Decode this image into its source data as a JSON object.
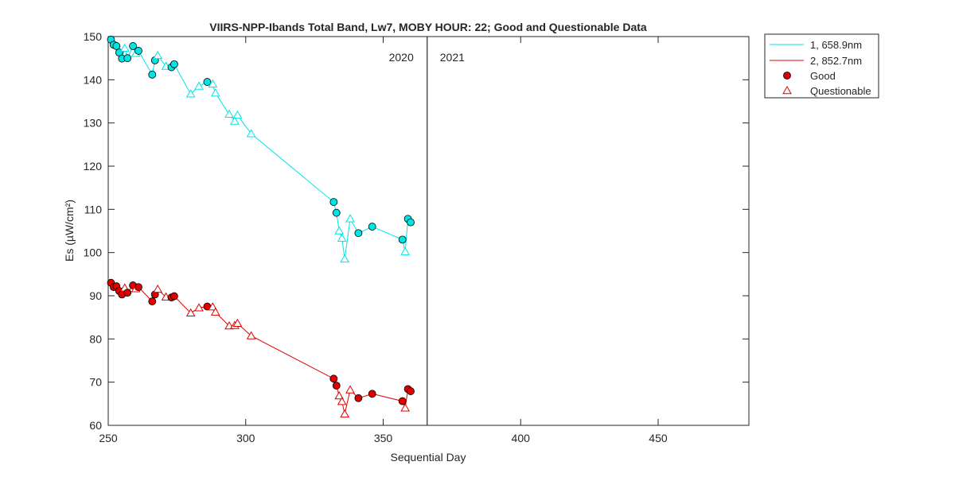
{
  "chart_data": {
    "type": "line",
    "title": "VIIRS-NPP-Ibands Total Band,  Lw7, MOBY HOUR: 22;  Good and Questionable Data",
    "xlabel": "Sequential Day",
    "ylabel": "Es (µW/cm²)",
    "xlim": [
      250,
      483
    ],
    "ylim": [
      60,
      150
    ],
    "xticks": [
      250,
      300,
      350,
      400,
      450
    ],
    "yticks": [
      60,
      70,
      80,
      90,
      100,
      110,
      120,
      130,
      140,
      150
    ],
    "year_divider_x": 366,
    "year_labels": [
      "2020",
      "2021"
    ],
    "legend_position": "outside-top-right",
    "grid": false,
    "series": [
      {
        "name": "1, 658.9nm",
        "color": "#00e5e5",
        "points": [
          {
            "x": 251,
            "y": 149.3,
            "q": "good"
          },
          {
            "x": 252,
            "y": 148.1,
            "q": "good"
          },
          {
            "x": 253,
            "y": 147.8,
            "q": "good"
          },
          {
            "x": 254,
            "y": 146.3,
            "q": "good"
          },
          {
            "x": 255,
            "y": 144.9,
            "q": "good"
          },
          {
            "x": 256,
            "y": 147.3,
            "q": "questionable"
          },
          {
            "x": 257,
            "y": 145.0,
            "q": "good"
          },
          {
            "x": 259,
            "y": 147.8,
            "q": "good"
          },
          {
            "x": 260,
            "y": 146.1,
            "q": "questionable"
          },
          {
            "x": 261,
            "y": 146.7,
            "q": "good"
          },
          {
            "x": 266,
            "y": 141.2,
            "q": "good"
          },
          {
            "x": 267,
            "y": 144.5,
            "q": "good"
          },
          {
            "x": 268,
            "y": 145.6,
            "q": "questionable"
          },
          {
            "x": 271,
            "y": 143.1,
            "q": "questionable"
          },
          {
            "x": 273,
            "y": 142.9,
            "q": "good"
          },
          {
            "x": 274,
            "y": 143.6,
            "q": "good"
          },
          {
            "x": 280,
            "y": 136.7,
            "q": "questionable"
          },
          {
            "x": 283,
            "y": 138.5,
            "q": "questionable"
          },
          {
            "x": 286,
            "y": 139.5,
            "q": "good"
          },
          {
            "x": 288,
            "y": 139.0,
            "q": "questionable"
          },
          {
            "x": 289,
            "y": 136.9,
            "q": "questionable"
          },
          {
            "x": 294,
            "y": 132.0,
            "q": "questionable"
          },
          {
            "x": 296,
            "y": 130.4,
            "q": "questionable"
          },
          {
            "x": 297,
            "y": 131.8,
            "q": "questionable"
          },
          {
            "x": 302,
            "y": 127.5,
            "q": "questionable"
          },
          {
            "x": 332,
            "y": 111.7,
            "q": "good"
          },
          {
            "x": 333,
            "y": 109.2,
            "q": "good"
          },
          {
            "x": 334,
            "y": 105.0,
            "q": "questionable"
          },
          {
            "x": 335,
            "y": 103.3,
            "q": "questionable"
          },
          {
            "x": 336,
            "y": 98.5,
            "q": "questionable"
          },
          {
            "x": 338,
            "y": 107.8,
            "q": "questionable"
          },
          {
            "x": 341,
            "y": 104.5,
            "q": "good"
          },
          {
            "x": 346,
            "y": 106.0,
            "q": "good"
          },
          {
            "x": 357,
            "y": 103.0,
            "q": "good"
          },
          {
            "x": 358,
            "y": 100.2,
            "q": "questionable"
          },
          {
            "x": 359,
            "y": 107.8,
            "q": "good"
          },
          {
            "x": 360,
            "y": 107.0,
            "q": "good"
          }
        ]
      },
      {
        "name": "2, 852.7nm",
        "color": "#e00000",
        "points": [
          {
            "x": 251,
            "y": 93.0,
            "q": "good"
          },
          {
            "x": 252,
            "y": 92.0,
            "q": "good"
          },
          {
            "x": 253,
            "y": 92.2,
            "q": "good"
          },
          {
            "x": 254,
            "y": 91.1,
            "q": "good"
          },
          {
            "x": 255,
            "y": 90.3,
            "q": "good"
          },
          {
            "x": 256,
            "y": 91.8,
            "q": "questionable"
          },
          {
            "x": 257,
            "y": 90.7,
            "q": "good"
          },
          {
            "x": 259,
            "y": 92.4,
            "q": "good"
          },
          {
            "x": 260,
            "y": 91.6,
            "q": "questionable"
          },
          {
            "x": 261,
            "y": 92.0,
            "q": "good"
          },
          {
            "x": 266,
            "y": 88.7,
            "q": "good"
          },
          {
            "x": 267,
            "y": 90.3,
            "q": "good"
          },
          {
            "x": 268,
            "y": 91.5,
            "q": "questionable"
          },
          {
            "x": 271,
            "y": 89.7,
            "q": "questionable"
          },
          {
            "x": 273,
            "y": 89.6,
            "q": "good"
          },
          {
            "x": 274,
            "y": 89.9,
            "q": "good"
          },
          {
            "x": 280,
            "y": 86.0,
            "q": "questionable"
          },
          {
            "x": 283,
            "y": 87.2,
            "q": "questionable"
          },
          {
            "x": 286,
            "y": 87.5,
            "q": "good"
          },
          {
            "x": 288,
            "y": 87.4,
            "q": "questionable"
          },
          {
            "x": 289,
            "y": 86.2,
            "q": "questionable"
          },
          {
            "x": 294,
            "y": 83.0,
            "q": "questionable"
          },
          {
            "x": 296,
            "y": 83.1,
            "q": "questionable"
          },
          {
            "x": 297,
            "y": 83.6,
            "q": "questionable"
          },
          {
            "x": 302,
            "y": 80.7,
            "q": "questionable"
          },
          {
            "x": 332,
            "y": 70.8,
            "q": "good"
          },
          {
            "x": 333,
            "y": 69.2,
            "q": "good"
          },
          {
            "x": 334,
            "y": 66.8,
            "q": "questionable"
          },
          {
            "x": 335,
            "y": 65.5,
            "q": "questionable"
          },
          {
            "x": 336,
            "y": 62.6,
            "q": "questionable"
          },
          {
            "x": 338,
            "y": 68.2,
            "q": "questionable"
          },
          {
            "x": 341,
            "y": 66.3,
            "q": "good"
          },
          {
            "x": 346,
            "y": 67.3,
            "q": "good"
          },
          {
            "x": 357,
            "y": 65.6,
            "q": "good"
          },
          {
            "x": 358,
            "y": 64.0,
            "q": "questionable"
          },
          {
            "x": 359,
            "y": 68.4,
            "q": "good"
          },
          {
            "x": 360,
            "y": 67.9,
            "q": "good"
          }
        ]
      }
    ],
    "legend": [
      {
        "label": "1, 658.9nm",
        "kind": "line",
        "color": "#00e5e5"
      },
      {
        "label": "2, 852.7nm",
        "kind": "line",
        "color": "#e00000"
      },
      {
        "label": "Good",
        "kind": "circle",
        "color": "#e00000"
      },
      {
        "label": "Questionable",
        "kind": "triangle",
        "color": "#e00000"
      }
    ]
  }
}
